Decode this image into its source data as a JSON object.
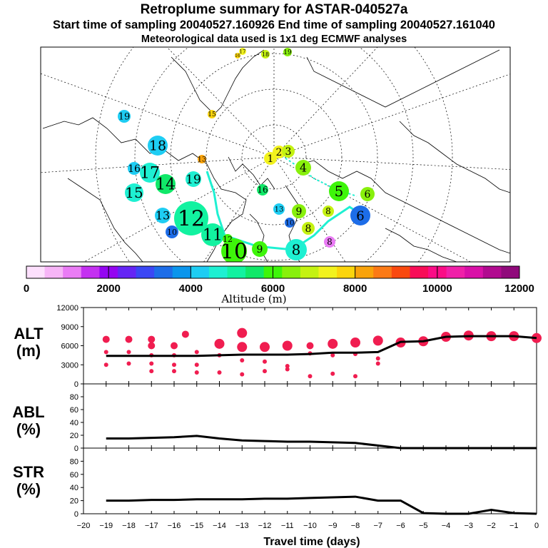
{
  "title": "Retroplume summary for ASTAR-040527a",
  "subtitle": "Start time of sampling 20040527.160926     End time of sampling 20040527.161040",
  "met_line": "Meteorological data used is 1x1 deg ECMWF analyses",
  "colorbar": {
    "colors": [
      "#fde0fd",
      "#f7b5f7",
      "#ea7cf5",
      "#c431f1",
      "#9405f1",
      "#6525f5",
      "#3b47f5",
      "#1d6de8",
      "#0b95ec",
      "#1ecdf3",
      "#1ef0d2",
      "#12f2a0",
      "#10e868",
      "#3ef50a",
      "#88f00c",
      "#c4f212",
      "#f2f21e",
      "#fbd50c",
      "#f9a30b",
      "#fb7a16",
      "#f9490f",
      "#f80d57",
      "#fb0c86",
      "#f020a8",
      "#d910a7",
      "#b10a8f",
      "#900a7b"
    ],
    "ticks": [
      "0",
      "2000",
      "4000",
      "6000",
      "8000",
      "10000",
      "12000"
    ],
    "label": "Altitude (m)"
  },
  "map": {
    "markers": [
      {
        "n": "19",
        "c": "#1ecdf3"
      },
      {
        "n": "18",
        "c": "#1ecdf3"
      },
      {
        "n": "17",
        "c": "#1ef0d2"
      },
      {
        "n": "16",
        "c": "#1ecdf3"
      },
      {
        "n": "15",
        "c": "#1ef0d2"
      },
      {
        "n": "14",
        "c": "#10e868"
      },
      {
        "n": "19",
        "c": "#1ef0d2"
      },
      {
        "n": "13",
        "c": "#f9a30b"
      },
      {
        "n": "12",
        "c": "#12f2a0"
      },
      {
        "n": "13",
        "c": "#1ecdf3"
      },
      {
        "n": "10",
        "c": "#1d6de8"
      },
      {
        "n": "11",
        "c": "#12f2a0"
      },
      {
        "n": "10",
        "c": "#3ef50a"
      },
      {
        "n": "9",
        "c": "#3ef50a"
      },
      {
        "n": "8",
        "c": "#1ef0d2"
      },
      {
        "n": "12",
        "c": "#3ef50a"
      },
      {
        "n": "16",
        "c": "#10e868"
      },
      {
        "n": "13",
        "c": "#1ecdf3"
      },
      {
        "n": "9",
        "c": "#88f00c"
      },
      {
        "n": "10",
        "c": "#1d6de8"
      },
      {
        "n": "8",
        "c": "#c4f212"
      },
      {
        "n": "8",
        "c": "#ea7cf5"
      },
      {
        "n": "5",
        "c": "#3ef50a"
      },
      {
        "n": "6",
        "c": "#88f00c"
      },
      {
        "n": "8",
        "c": "#c4f212"
      },
      {
        "n": "6",
        "c": "#1d6de8"
      },
      {
        "n": "1",
        "c": "#f2f21e"
      },
      {
        "n": "2",
        "c": "#f2f21e"
      },
      {
        "n": "3",
        "c": "#c4f212"
      },
      {
        "n": "4",
        "c": "#88f00c"
      },
      {
        "n": "19",
        "c": "#1ecdf3"
      },
      {
        "n": "15",
        "c": "#fbd50c"
      },
      {
        "n": "17",
        "c": "#f2f21e"
      },
      {
        "n": "16",
        "c": "#fbd50c"
      },
      {
        "n": "18",
        "c": "#c4f212"
      },
      {
        "n": "19",
        "c": "#88f00c"
      }
    ]
  },
  "chart_data": [
    {
      "type": "line",
      "name": "altitude",
      "ylabel": "ALT\n(m)",
      "xlabel": "Travel time (days)",
      "xlim": [
        -20,
        0
      ],
      "ylim": [
        0,
        12000
      ],
      "yticks": [
        "0",
        "3000",
        "6000",
        "9000",
        "12000"
      ],
      "x": [
        -19,
        -18,
        -17,
        -16,
        -15,
        -14,
        -13,
        -12,
        -11,
        -10,
        -9,
        -8,
        -7,
        -6,
        -5,
        -4,
        -3,
        -2,
        -1,
        0
      ],
      "series": [
        {
          "name": "median altitude",
          "values": [
            4400,
            4400,
            4400,
            4400,
            4400,
            4500,
            4600,
            4600,
            4600,
            4700,
            4900,
            4900,
            5000,
            6600,
            6700,
            7400,
            7500,
            7500,
            7500,
            7200
          ]
        }
      ],
      "cluster_points": [
        {
          "x": -19,
          "y": 7000
        },
        {
          "x": -19,
          "y": 5000
        },
        {
          "x": -19,
          "y": 3000
        },
        {
          "x": -18,
          "y": 7000
        },
        {
          "x": -18,
          "y": 5000
        },
        {
          "x": -18,
          "y": 3200
        },
        {
          "x": -17,
          "y": 7000
        },
        {
          "x": -17,
          "y": 6000
        },
        {
          "x": -17,
          "y": 4500
        },
        {
          "x": -17,
          "y": 3200
        },
        {
          "x": -17,
          "y": 2000
        },
        {
          "x": -16,
          "y": 6000
        },
        {
          "x": -16,
          "y": 4500
        },
        {
          "x": -16,
          "y": 3000
        },
        {
          "x": -16,
          "y": 2000
        },
        {
          "x": -15.5,
          "y": 7800
        },
        {
          "x": -15,
          "y": 5000
        },
        {
          "x": -15,
          "y": 3000
        },
        {
          "x": -15,
          "y": 1800
        },
        {
          "x": -14,
          "y": 6300
        },
        {
          "x": -14,
          "y": 4500
        },
        {
          "x": -14,
          "y": 1800
        },
        {
          "x": -13,
          "y": 8000
        },
        {
          "x": -13,
          "y": 5800
        },
        {
          "x": -13,
          "y": 3700
        },
        {
          "x": -13,
          "y": 1500
        },
        {
          "x": -12,
          "y": 5800
        },
        {
          "x": -12,
          "y": 3500
        },
        {
          "x": -12,
          "y": 2000
        },
        {
          "x": -11,
          "y": 6000
        },
        {
          "x": -11,
          "y": 2800
        },
        {
          "x": -11,
          "y": 2300
        },
        {
          "x": -10,
          "y": 6000
        },
        {
          "x": -10,
          "y": 4800
        },
        {
          "x": -10,
          "y": 1200
        },
        {
          "x": -9,
          "y": 6300
        },
        {
          "x": -9,
          "y": 4500
        },
        {
          "x": -9,
          "y": 1600
        },
        {
          "x": -8,
          "y": 6500
        },
        {
          "x": -8,
          "y": 4700
        },
        {
          "x": -8,
          "y": 1200
        },
        {
          "x": -7,
          "y": 6800
        },
        {
          "x": -7,
          "y": 4000
        },
        {
          "x": -7,
          "y": 3200
        },
        {
          "x": -6,
          "y": 6500
        },
        {
          "x": -5,
          "y": 6700
        },
        {
          "x": -4,
          "y": 7400
        },
        {
          "x": -3,
          "y": 7600
        },
        {
          "x": -2,
          "y": 7500
        },
        {
          "x": -1,
          "y": 7500
        },
        {
          "x": 0,
          "y": 7200
        }
      ]
    },
    {
      "type": "line",
      "name": "abl",
      "ylabel": "ABL\n(%)",
      "xlim": [
        -20,
        0
      ],
      "ylim": [
        0,
        100
      ],
      "yticks": [
        "0",
        "20",
        "40",
        "60",
        "80"
      ],
      "x": [
        -19,
        -18,
        -17,
        -16,
        -15,
        -14,
        -13,
        -12,
        -11,
        -10,
        -9,
        -8,
        -7,
        -6,
        -5,
        -4,
        -3,
        -2,
        -1,
        0
      ],
      "series": [
        {
          "name": "ABL fraction",
          "values": [
            15,
            15,
            16,
            17,
            19,
            15,
            12,
            11,
            10,
            10,
            9,
            8,
            4,
            0,
            0,
            0,
            0,
            0,
            0,
            0
          ]
        }
      ]
    },
    {
      "type": "line",
      "name": "str",
      "ylabel": "STR\n(%)",
      "xlim": [
        -20,
        0
      ],
      "ylim": [
        0,
        100
      ],
      "yticks": [
        "0",
        "20",
        "40",
        "60",
        "80"
      ],
      "xticks": [
        "−20",
        "−19",
        "−18",
        "−17",
        "−16",
        "−15",
        "−14",
        "−13",
        "−12",
        "−11",
        "−10",
        "−9",
        "−8",
        "−7",
        "−6",
        "−5",
        "−4",
        "−3",
        "−2",
        "−1",
        "0"
      ],
      "xlabel": "Travel time (days)",
      "x": [
        -19,
        -18,
        -17,
        -16,
        -15,
        -14,
        -13,
        -12,
        -11,
        -10,
        -9,
        -8,
        -7,
        -6,
        -5,
        -4,
        -3,
        -2,
        -1,
        0
      ],
      "series": [
        {
          "name": "stratospheric fraction",
          "values": [
            20,
            20,
            21,
            21,
            22,
            22,
            22,
            23,
            23,
            24,
            25,
            26,
            20,
            20,
            1,
            0,
            0,
            6,
            1,
            0
          ]
        }
      ]
    }
  ]
}
